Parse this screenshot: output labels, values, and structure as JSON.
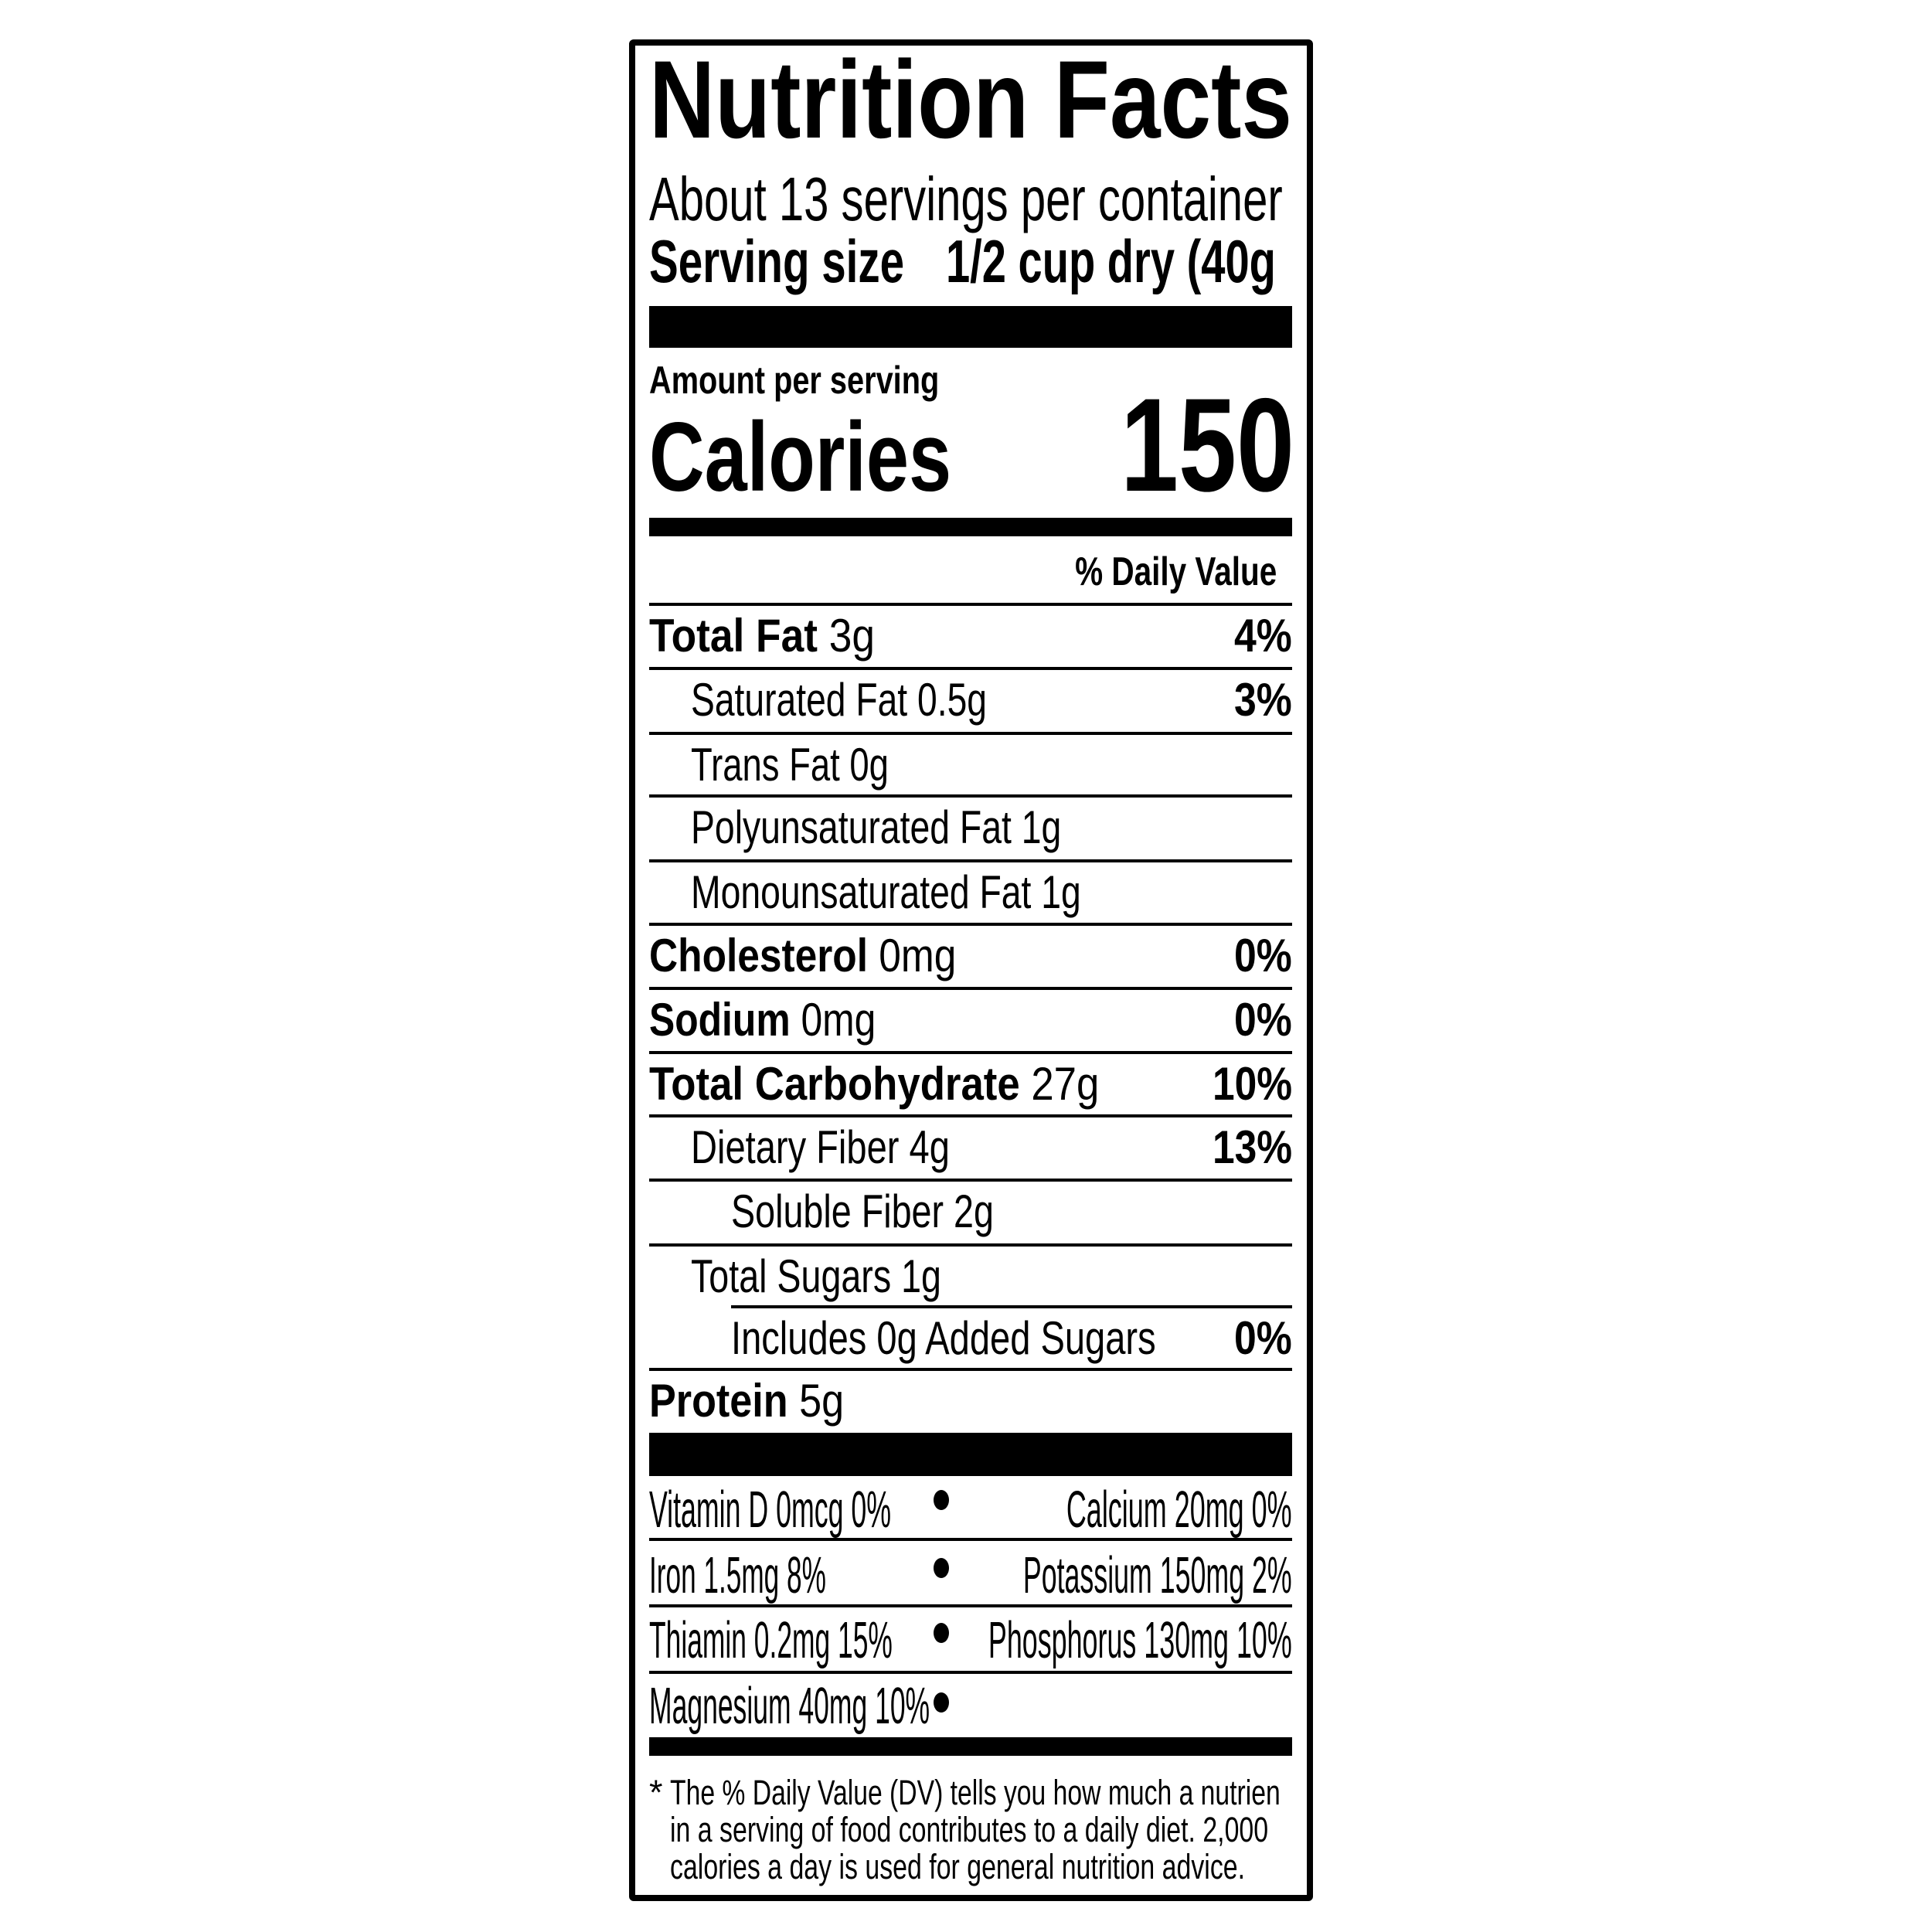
{
  "header": {
    "title": "Nutrition Facts",
    "servings": "About 13 servings per container",
    "serving_size_label": "Serving size",
    "serving_size_value": "1/2 cup dry (40g"
  },
  "calories": {
    "amount_label": "Amount per serving",
    "label": "Calories",
    "value": "150"
  },
  "daily_value_header": "% Daily Value",
  "rows": [
    {
      "name": "Total Fat",
      "amount": "3g",
      "dv": "4%"
    },
    {
      "name": "Saturated Fat",
      "amount": "0.5g",
      "dv": "3%"
    },
    {
      "name": "Trans Fat",
      "amount": "0g",
      "dv": ""
    },
    {
      "name": "Polyunsaturated Fat",
      "amount": "1g",
      "dv": ""
    },
    {
      "name": "Monounsaturated Fat",
      "amount": "1g",
      "dv": ""
    },
    {
      "name": "Cholesterol",
      "amount": "0mg",
      "dv": "0%"
    },
    {
      "name": "Sodium",
      "amount": "0mg",
      "dv": "0%"
    },
    {
      "name": "Total Carbohydrate",
      "amount": "27g",
      "dv": "10%"
    },
    {
      "name": "Dietary Fiber",
      "amount": "4g",
      "dv": "13%"
    },
    {
      "name": "Soluble Fiber",
      "amount": "2g",
      "dv": ""
    },
    {
      "name": "Total Sugars",
      "amount": "1g",
      "dv": ""
    },
    {
      "name": "Includes 0g Added Sugars",
      "amount": "",
      "dv": "0%"
    },
    {
      "name": "Protein",
      "amount": "5g",
      "dv": ""
    }
  ],
  "vitamins": [
    "Vitamin D 0mcg 0%",
    "Calcium 20mg 0%",
    "Iron 1.5mg 8%",
    "Potassium 150mg 2%",
    "Thiamin 0.2mg 15%",
    "Phosphorus 130mg 10%",
    "Magnesium 40mg 10%"
  ],
  "footnote": {
    "asterisk": "*",
    "lines": [
      "The % Daily Value (DV) tells you how much a nutrien",
      "in a serving of food contributes to a daily diet. 2,000",
      "calories a day is used for general nutrition advice."
    ]
  }
}
